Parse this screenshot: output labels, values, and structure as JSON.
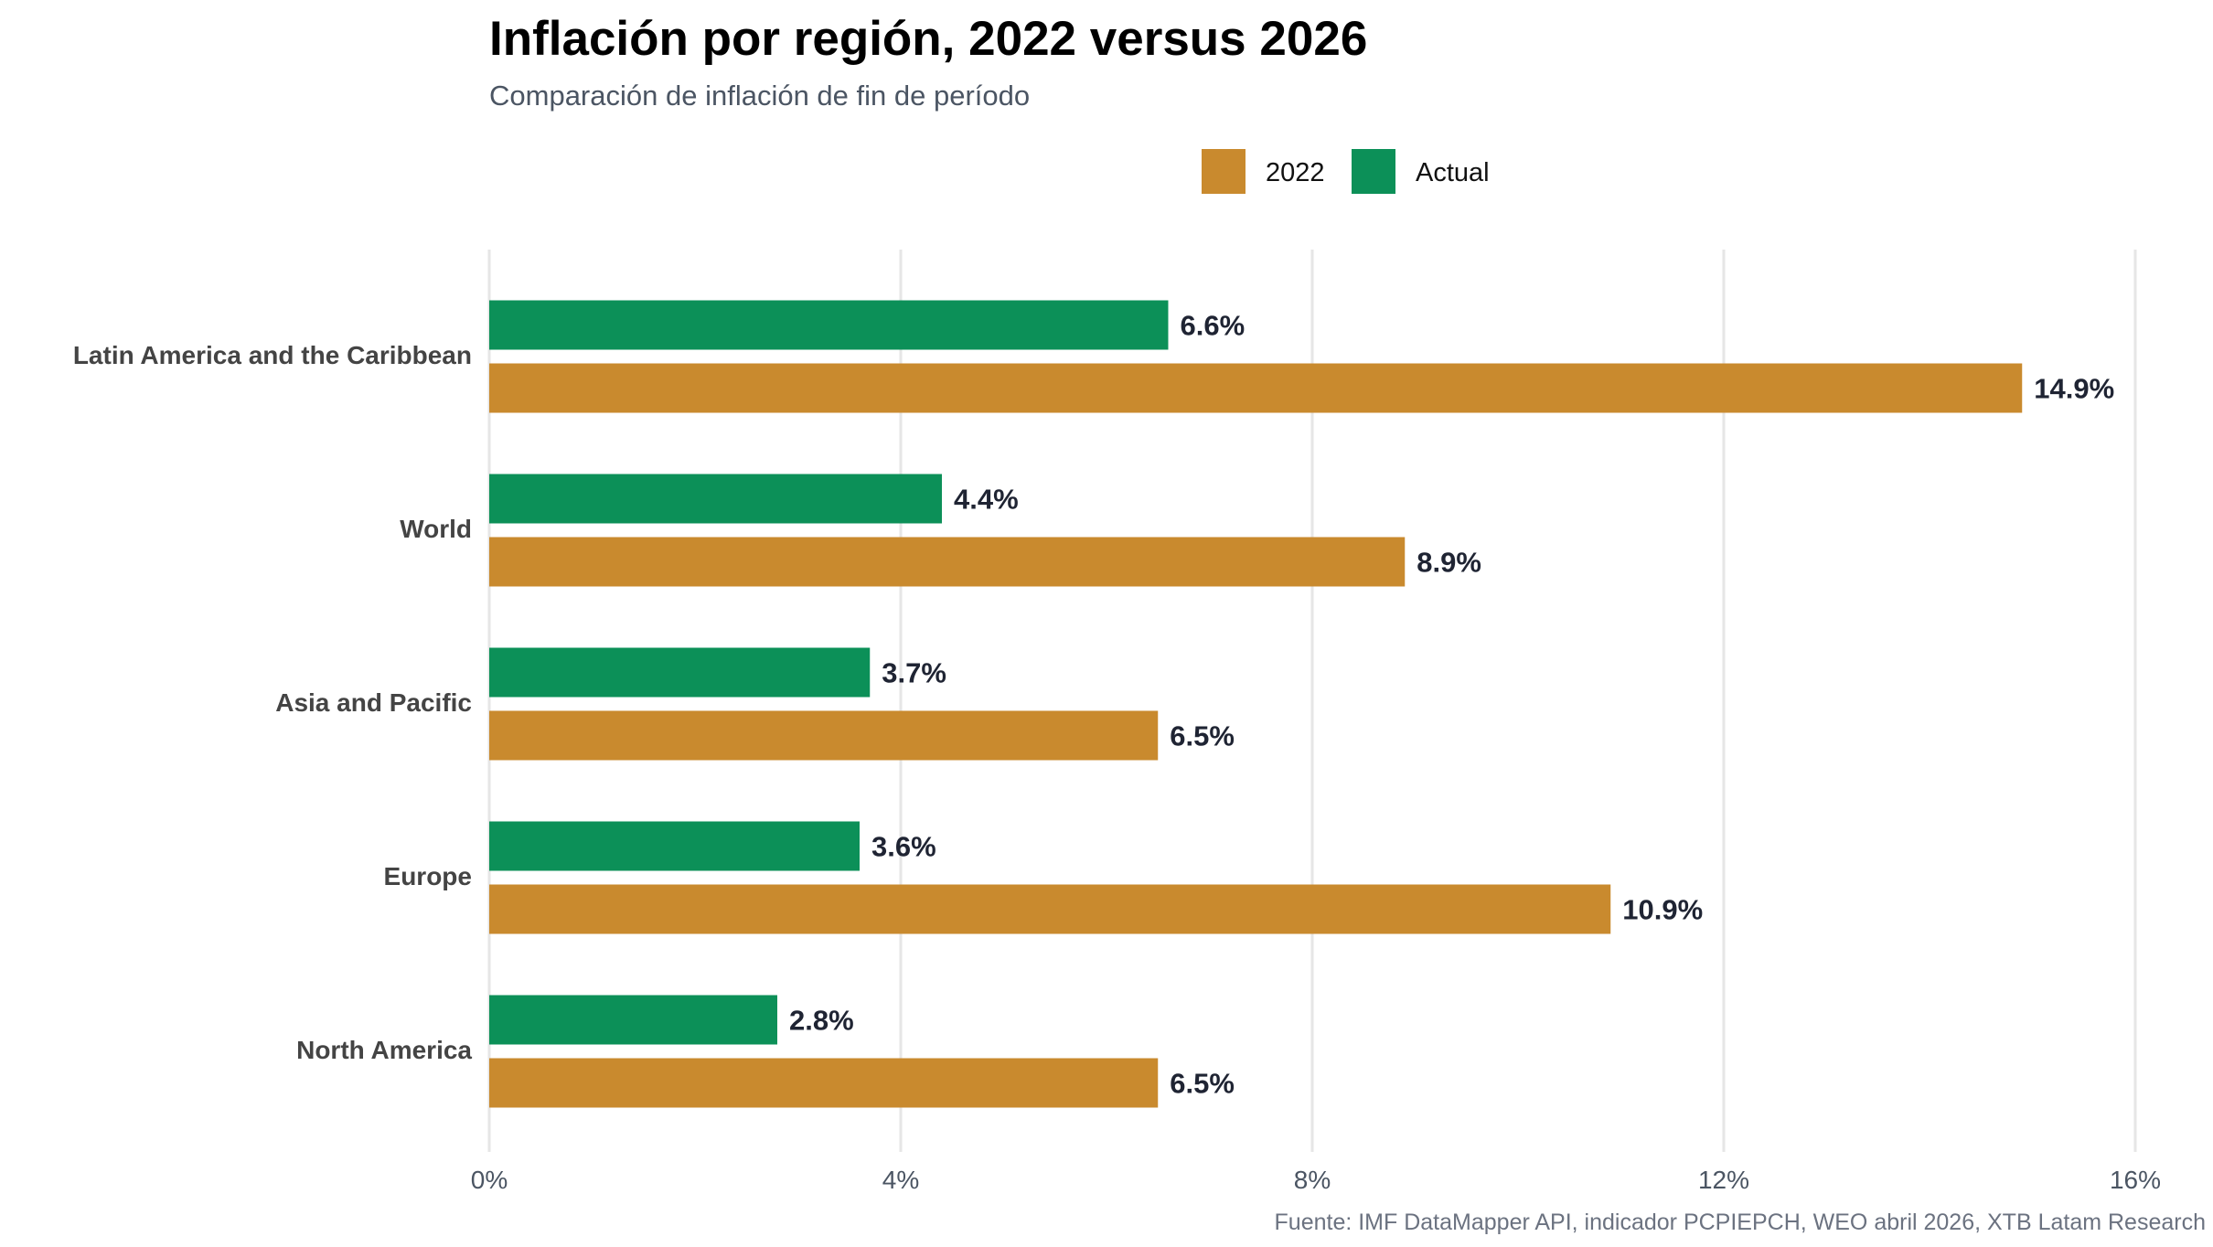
{
  "chart_data": {
    "type": "bar",
    "orientation": "horizontal",
    "title": "Inflación por región, 2022 versus 2026",
    "subtitle": "Comparación de inflación de fin de período",
    "source": "Fuente: IMF DataMapper API, indicador PCPIEPCH, WEO abril 2026, XTB Latam Research",
    "categories": [
      "Latin America and the Caribbean",
      "World",
      "Asia and Pacific",
      "Europe",
      "North America"
    ],
    "series": [
      {
        "name": "Actual",
        "color": "#0C9058",
        "values": [
          6.6,
          4.4,
          3.7,
          3.6,
          2.8
        ],
        "labels": [
          "6.6%",
          "4.4%",
          "3.7%",
          "3.6%",
          "2.8%"
        ]
      },
      {
        "name": "2022",
        "color": "#C98A2E",
        "values": [
          14.9,
          8.9,
          6.5,
          10.9,
          6.5
        ],
        "labels": [
          "14.9%",
          "8.9%",
          "6.5%",
          "10.9%",
          "6.5%"
        ]
      }
    ],
    "legend": {
      "position": "top",
      "order": [
        "2022",
        "Actual"
      ]
    },
    "xlim": [
      0,
      16
    ],
    "xticks": [
      0,
      4,
      8,
      12,
      16
    ],
    "xtick_labels": [
      "0%",
      "4%",
      "8%",
      "12%",
      "16%"
    ],
    "grid": "vertical-major"
  }
}
